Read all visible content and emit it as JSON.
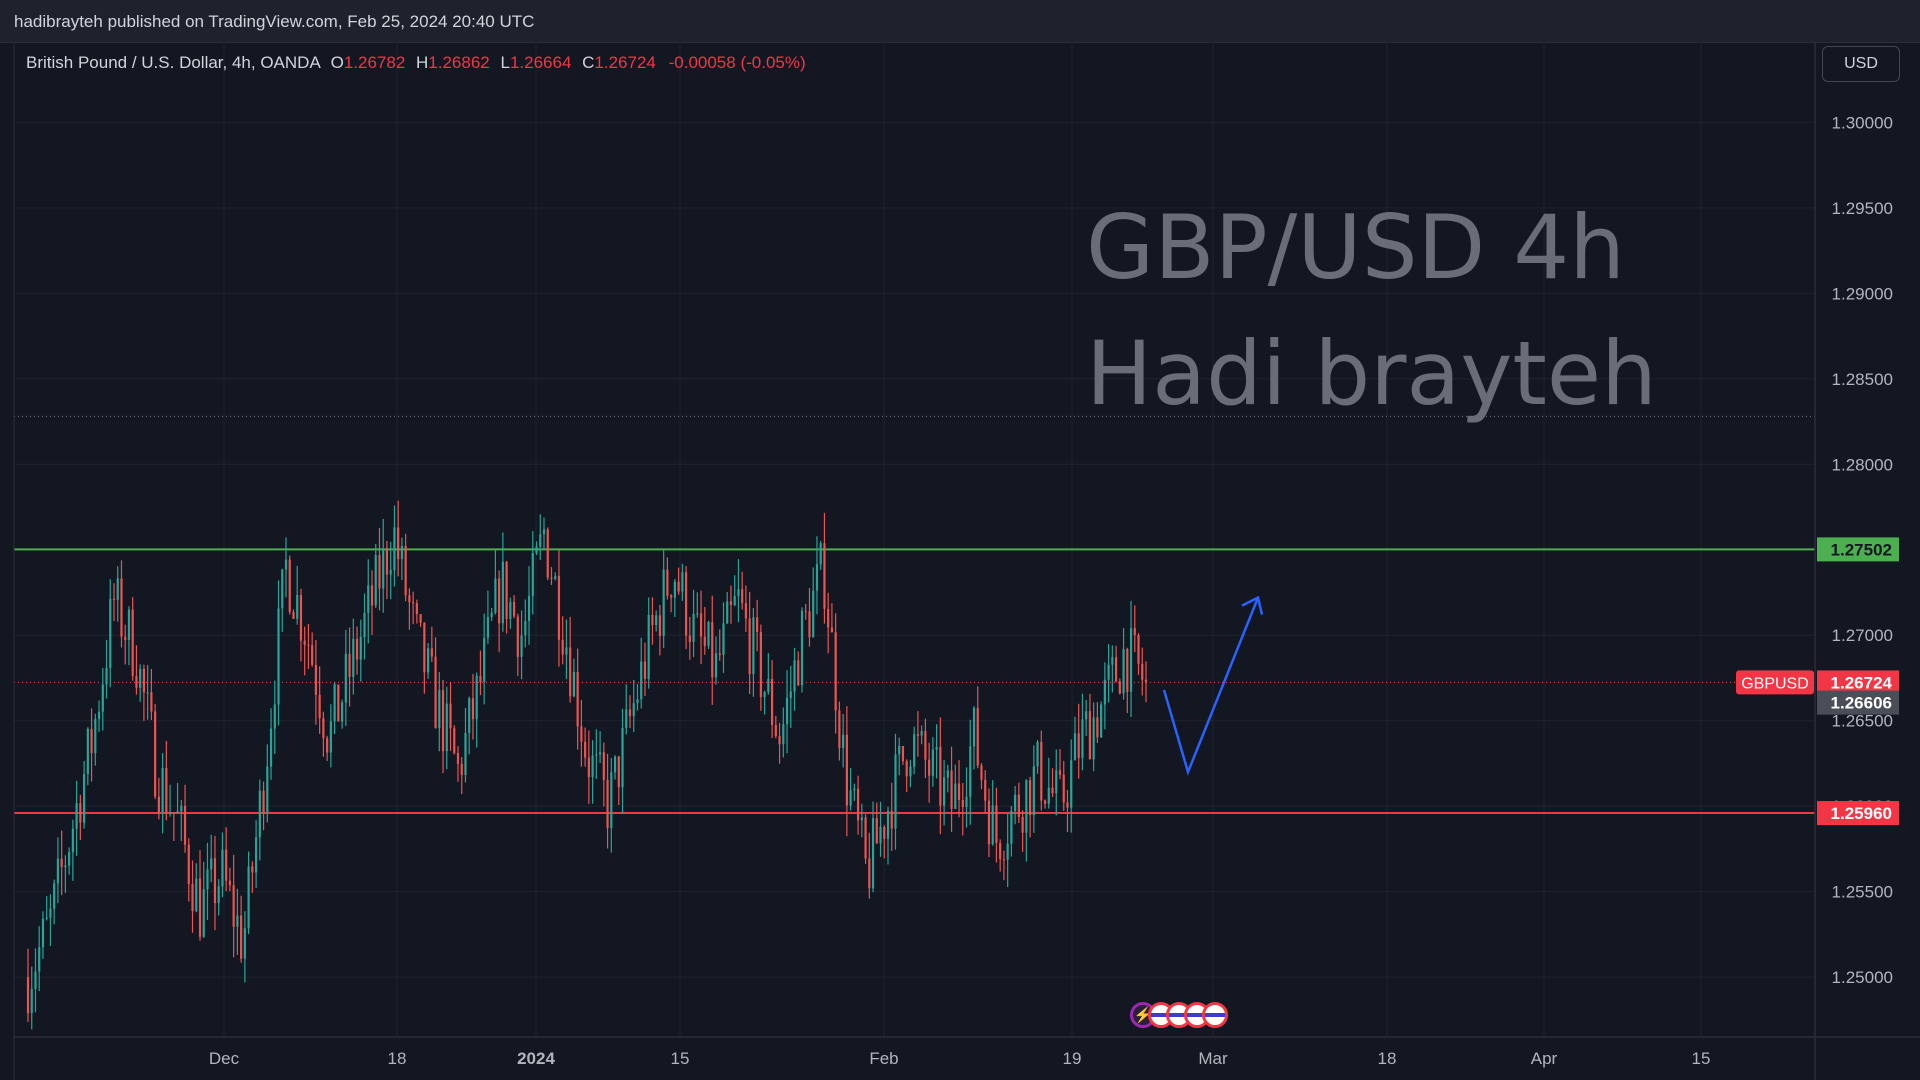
{
  "header": {
    "published_text": "hadibrayteh published on TradingView.com, Feb 25, 2024 20:40 UTC"
  },
  "legend": {
    "symbol_text": "British Pound / U.S. Dollar, 4h, OANDA",
    "open_label": "O",
    "open_value": "1.26782",
    "high_label": "H",
    "high_value": "1.26862",
    "low_label": "L",
    "low_value": "1.26664",
    "close_label": "C",
    "close_value": "1.26724",
    "change_value": "-0.00058 (-0.05%)"
  },
  "currency_button": "USD",
  "watermark": {
    "line1": "GBP/USD 4h",
    "line2": "Hadi brayteh"
  },
  "colors": {
    "background": "#131722",
    "up": "#26a69a",
    "down": "#ef5350",
    "resistance": "#4caf50",
    "support": "#f23645",
    "arrow": "#2962ff"
  },
  "chart_data": {
    "type": "candlestick",
    "symbol": "GBPUSD",
    "interval": "4h",
    "ylim": [
      1.2465,
      1.3047
    ],
    "y_ticks": [
      "1.30000",
      "1.29500",
      "1.29000",
      "1.28500",
      "1.28000",
      "1.27500",
      "1.27000",
      "1.26500",
      "1.26000",
      "1.25500",
      "1.25000"
    ],
    "x_ticks": [
      {
        "label": "Dec",
        "bold": false
      },
      {
        "label": "18",
        "bold": false
      },
      {
        "label": "2024",
        "bold": true
      },
      {
        "label": "15",
        "bold": false
      },
      {
        "label": "Feb",
        "bold": false
      },
      {
        "label": "19",
        "bold": false
      },
      {
        "label": "Mar",
        "bold": false
      },
      {
        "label": "18",
        "bold": false
      },
      {
        "label": "Apr",
        "bold": false
      },
      {
        "label": "15",
        "bold": false
      }
    ],
    "price_trend_closes": [
      1.25,
      1.253,
      1.2585,
      1.264,
      1.272,
      1.269,
      1.262,
      1.259,
      1.254,
      1.256,
      1.252,
      1.262,
      1.274,
      1.27,
      1.264,
      1.268,
      1.272,
      1.276,
      1.27,
      1.266,
      1.262,
      1.267,
      1.273,
      1.27,
      1.276,
      1.27,
      1.263,
      1.26,
      1.265,
      1.27,
      1.274,
      1.27,
      1.268,
      1.272,
      1.268,
      1.264,
      1.27,
      1.274,
      1.262,
      1.256,
      1.26,
      1.264,
      1.262,
      1.26,
      1.264,
      1.258,
      1.26,
      1.262,
      1.26,
      1.264,
      1.266,
      1.269,
      1.2672
    ],
    "levels": [
      {
        "name": "resistance",
        "value": 1.27502,
        "label": "1.27502"
      },
      {
        "name": "support",
        "value": 1.2596,
        "label": "1.25960"
      },
      {
        "name": "range-high",
        "value": 1.2828
      }
    ],
    "last_price": {
      "symbol_label": "GBPUSD",
      "value": 1.26724,
      "label": "1.26724"
    },
    "secondary_price": {
      "value": 1.26606,
      "label": "1.26606"
    },
    "forecast_path": [
      [
        1.2668,
        0
      ],
      [
        1.262,
        1
      ],
      [
        1.2722,
        2
      ]
    ],
    "legend": "top-left",
    "grid": true
  }
}
